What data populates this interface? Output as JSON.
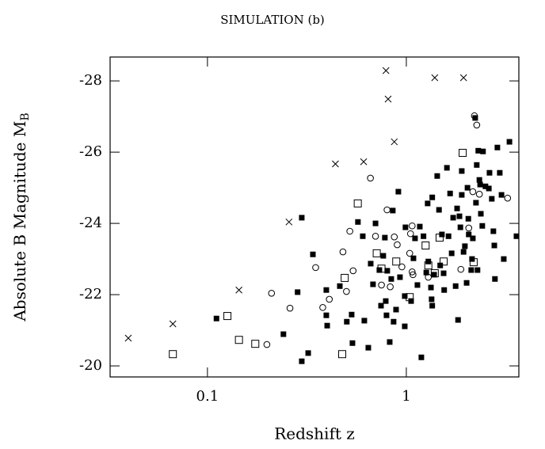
{
  "chart_data": {
    "type": "scatter",
    "title": "SIMULATION (b)",
    "xlabel": "Redshift z",
    "ylabel": {
      "text": "Absolute B Magnitude M",
      "subscript": "B"
    },
    "xscale": "log",
    "xlim": [
      0.0324,
      3.68
    ],
    "xticks": [
      0.1,
      1
    ],
    "ylim": [
      -19.69,
      -28.67
    ],
    "yticks": [
      -28,
      -26,
      -24,
      -22,
      -20
    ],
    "series": [
      {
        "marker": "cross",
        "color": "#000",
        "x": [
          0.04,
          0.067,
          0.144,
          0.257,
          0.44,
          0.61,
          0.79,
          0.81,
          0.87,
          1.39,
          1.94
        ],
        "y": [
          -20.78,
          -21.18,
          -22.13,
          -24.04,
          -25.67,
          -25.73,
          -28.29,
          -27.49,
          -26.29,
          -28.09,
          -28.09
        ]
      },
      {
        "marker": "open-square",
        "color": "#000",
        "x": [
          0.067,
          0.126,
          0.144,
          0.174,
          0.476,
          0.49,
          0.57,
          0.71,
          0.75,
          0.89,
          1.04,
          1.25,
          1.29,
          1.39,
          1.47,
          1.54,
          1.92,
          2.18
        ],
        "y": [
          -20.33,
          -21.4,
          -20.73,
          -20.62,
          -20.33,
          -22.47,
          -24.56,
          -23.16,
          -22.73,
          -22.93,
          -21.93,
          -23.38,
          -22.82,
          -22.6,
          -23.6,
          -22.93,
          -25.98,
          -22.91
        ]
      },
      {
        "marker": "open-circle",
        "color": "#000",
        "x": [
          0.199,
          0.21,
          0.26,
          0.35,
          0.38,
          0.41,
          0.48,
          0.5,
          0.52,
          0.54,
          0.66,
          0.7,
          0.75,
          0.8,
          0.87,
          0.9,
          0.95,
          1.04,
          1.05,
          1.07,
          1.07,
          1.08,
          1.29,
          1.88,
          2.06,
          2.16,
          2.2,
          2.26,
          2.33,
          3.23,
          0.83
        ],
        "y": [
          -20.6,
          -22.04,
          -21.62,
          -22.76,
          -21.64,
          -21.87,
          -23.2,
          -22.09,
          -23.78,
          -22.67,
          -25.27,
          -23.64,
          -22.27,
          -24.38,
          -23.62,
          -23.4,
          -22.78,
          -23.16,
          -23.71,
          -23.93,
          -22.64,
          -22.56,
          -22.49,
          -22.71,
          -23.87,
          -24.89,
          -27.02,
          -26.76,
          -24.82,
          -24.71,
          -22.22
        ]
      },
      {
        "marker": "filled-square",
        "color": "#000",
        "x": [
          0.111,
          0.241,
          0.298,
          0.321,
          0.298,
          0.284,
          0.339,
          0.396,
          0.396,
          0.4,
          0.463,
          0.502,
          0.531,
          0.536,
          0.571,
          0.604,
          0.615,
          0.644,
          0.662,
          0.68,
          0.7,
          0.732,
          0.746,
          0.766,
          0.78,
          0.788,
          0.795,
          0.802,
          0.825,
          0.84,
          0.855,
          0.863,
          0.888,
          0.912,
          0.929,
          0.982,
          0.982,
          0.99,
          1.057,
          1.086,
          1.106,
          1.137,
          1.169,
          1.19,
          1.22,
          1.26,
          1.28,
          1.29,
          1.33,
          1.34,
          1.35,
          1.35,
          1.38,
          1.43,
          1.46,
          1.48,
          1.51,
          1.54,
          1.55,
          1.6,
          1.63,
          1.66,
          1.69,
          1.72,
          1.77,
          1.8,
          1.82,
          1.85,
          1.87,
          1.9,
          1.9,
          1.94,
          1.97,
          2.01,
          2.03,
          2.05,
          2.06,
          2.12,
          2.14,
          2.16,
          2.22,
          2.24,
          2.26,
          2.28,
          2.3,
          2.33,
          2.35,
          2.37,
          2.41,
          2.43,
          2.5,
          2.6,
          2.62,
          2.69,
          2.74,
          2.77,
          2.79,
          2.87,
          2.95,
          3.01,
          3.09,
          3.3,
          3.58
        ],
        "y": [
          -21.33,
          -20.89,
          -24.16,
          -20.36,
          -20.13,
          -22.07,
          -23.13,
          -22.13,
          -21.42,
          -21.13,
          -22.24,
          -21.24,
          -21.44,
          -20.64,
          -24.04,
          -23.64,
          -21.27,
          -20.51,
          -22.87,
          -22.29,
          -24.0,
          -22.69,
          -21.69,
          -23.09,
          -23.6,
          -21.82,
          -21.42,
          -22.67,
          -20.67,
          -22.44,
          -24.36,
          -21.24,
          -21.58,
          -24.89,
          -22.49,
          -21.96,
          -21.11,
          -23.89,
          -21.82,
          -23.02,
          -23.58,
          -22.27,
          -23.91,
          -20.24,
          -23.64,
          -22.62,
          -24.56,
          -22.93,
          -22.2,
          -21.87,
          -24.73,
          -21.69,
          -22.56,
          -25.33,
          -24.38,
          -22.82,
          -23.69,
          -22.6,
          -22.13,
          -25.56,
          -23.64,
          -24.84,
          -23.16,
          -24.16,
          -22.24,
          -24.42,
          -21.29,
          -24.2,
          -23.89,
          -25.47,
          -24.8,
          -23.2,
          -23.36,
          -22.33,
          -25.0,
          -24.13,
          -23.69,
          -22.69,
          -23.0,
          -23.58,
          -26.96,
          -24.58,
          -25.64,
          -22.69,
          -26.04,
          -25.22,
          -25.09,
          -24.27,
          -23.93,
          -26.02,
          -25.04,
          -24.98,
          -25.42,
          -24.69,
          -23.78,
          -23.38,
          -22.44,
          -26.13,
          -25.42,
          -24.8,
          -23.0,
          -26.29,
          -23.64
        ]
      }
    ]
  }
}
